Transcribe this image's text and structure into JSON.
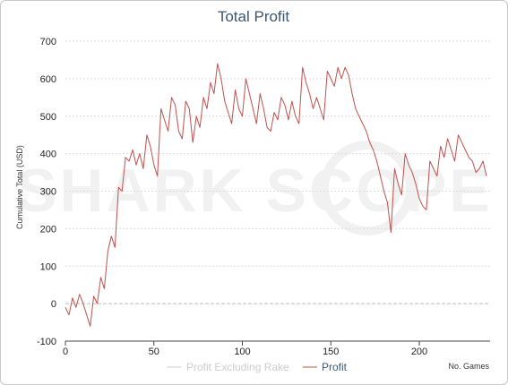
{
  "watermark": "SHARK SCOPE",
  "chart_data": {
    "type": "line",
    "title": "Total Profit",
    "xlabel": "No. Games",
    "ylabel": "Cumulative Total (USD)",
    "xlim": [
      0,
      240
    ],
    "ylim": [
      -100,
      700
    ],
    "x_ticks": [
      "0",
      "50",
      "100",
      "150",
      "200"
    ],
    "y_ticks": [
      "700",
      "600",
      "500",
      "400",
      "300",
      "200",
      "100",
      "0",
      "-100"
    ],
    "grid": true,
    "legend_position": "bottom",
    "series": [
      {
        "name": "Profit Excluding Rake",
        "color": "#cccccc",
        "x": [],
        "y": []
      },
      {
        "name": "Profit",
        "color": "#c0504d",
        "x": [
          0,
          2,
          4,
          6,
          8,
          10,
          12,
          14,
          16,
          18,
          20,
          22,
          24,
          26,
          28,
          30,
          32,
          34,
          36,
          38,
          40,
          42,
          44,
          46,
          48,
          50,
          52,
          54,
          56,
          58,
          60,
          62,
          64,
          66,
          68,
          70,
          72,
          74,
          76,
          78,
          80,
          82,
          84,
          86,
          88,
          90,
          92,
          94,
          96,
          98,
          100,
          102,
          104,
          106,
          108,
          110,
          112,
          114,
          116,
          118,
          120,
          122,
          124,
          126,
          128,
          130,
          132,
          134,
          136,
          138,
          140,
          142,
          144,
          146,
          148,
          150,
          152,
          154,
          156,
          158,
          160,
          162,
          164,
          166,
          168,
          170,
          172,
          174,
          176,
          178,
          180,
          182,
          184,
          186,
          188,
          190,
          192,
          194,
          196,
          198,
          200,
          202,
          204,
          206,
          208,
          210,
          212,
          214,
          216,
          218,
          220,
          222,
          224,
          226,
          228,
          230,
          232,
          234,
          236,
          238
        ],
        "y": [
          -10,
          -30,
          15,
          -10,
          25,
          0,
          -30,
          -60,
          20,
          0,
          70,
          40,
          140,
          180,
          150,
          310,
          300,
          390,
          380,
          410,
          370,
          400,
          360,
          450,
          420,
          370,
          340,
          520,
          490,
          460,
          550,
          530,
          460,
          440,
          540,
          520,
          430,
          500,
          470,
          550,
          520,
          590,
          560,
          640,
          600,
          540,
          510,
          480,
          570,
          520,
          500,
          600,
          560,
          520,
          480,
          560,
          520,
          470,
          460,
          510,
          490,
          550,
          530,
          490,
          540,
          500,
          480,
          630,
          590,
          560,
          520,
          550,
          520,
          490,
          620,
          600,
          580,
          630,
          600,
          630,
          610,
          560,
          520,
          500,
          480,
          460,
          430,
          410,
          380,
          340,
          300,
          270,
          190,
          360,
          320,
          290,
          400,
          370,
          350,
          320,
          280,
          260,
          250,
          380,
          360,
          340,
          420,
          390,
          440,
          410,
          380,
          450,
          430,
          410,
          390,
          380,
          350,
          360,
          380,
          340
        ]
      }
    ]
  }
}
